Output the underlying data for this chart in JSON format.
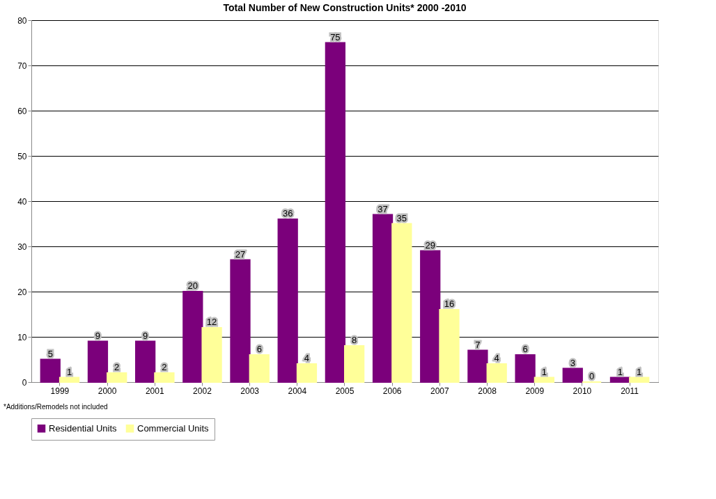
{
  "chart_data": {
    "type": "bar",
    "title": "Total Number of New Construction Units* 2000 -2010",
    "categories": [
      "1999",
      "2000",
      "2001",
      "2002",
      "2003",
      "2004",
      "2005",
      "2006",
      "2007",
      "2008",
      "2009",
      "2010",
      "2011"
    ],
    "series": [
      {
        "name": "Residential Units",
        "color": "#7b007b",
        "values": [
          5,
          9,
          9,
          20,
          27,
          36,
          75,
          37,
          29,
          7,
          6,
          3,
          1
        ]
      },
      {
        "name": "Commercial Units",
        "color": "#ffff99",
        "values": [
          1,
          2,
          2,
          12,
          6,
          4,
          8,
          35,
          16,
          4,
          1,
          0,
          1
        ]
      }
    ],
    "ylim": [
      0,
      80
    ],
    "yticks": [
      0,
      10,
      20,
      30,
      40,
      50,
      60,
      70,
      80
    ],
    "grid": "y",
    "legend": "bottom",
    "data_labels": true,
    "annotations": [
      "*Additions/Remodels not included"
    ]
  }
}
